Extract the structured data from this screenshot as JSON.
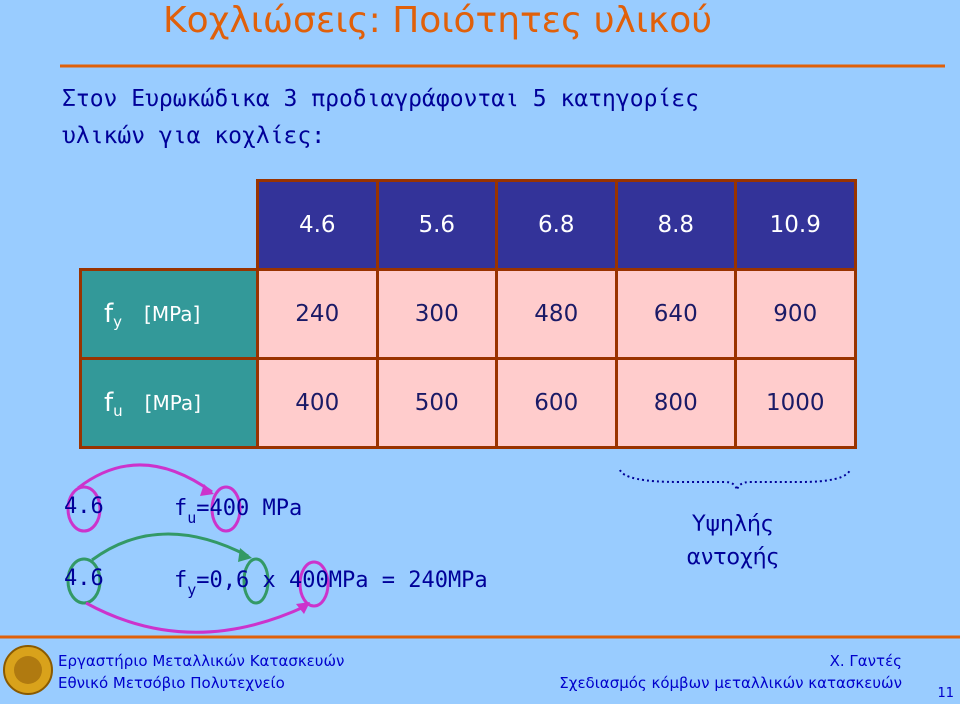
{
  "title": "Κοχλιώσεις: Ποιότητες υλικού",
  "intro": [
    "Στον Ευρωκώδικα 3 προδιαγράφονται 5 κατηγορίες",
    "υλικών για κοχλίες:"
  ],
  "table": {
    "header": [
      "4.6",
      "5.6",
      "6.8",
      "8.8",
      "10.9"
    ],
    "rows": [
      {
        "symbol": "f",
        "subscript": "y",
        "unit": "[MPa]",
        "values": [
          "240",
          "300",
          "480",
          "640",
          "900"
        ]
      },
      {
        "symbol": "f",
        "subscript": "u",
        "unit": "[MPa]",
        "values": [
          "400",
          "500",
          "600",
          "800",
          "1000"
        ]
      }
    ]
  },
  "example": [
    {
      "grade": "4.6",
      "symbol": "f",
      "subscript": "u",
      "expression": "=400 MPa"
    },
    {
      "grade": "4.6",
      "symbol": "f",
      "subscript": "y",
      "expression": "=0,6 x 400MPa = 240MPa"
    }
  ],
  "annotation": [
    "Υψηλής",
    "αντοχής"
  ],
  "footer": {
    "lab": "Εργαστήριο Μεταλλικών Κατασκευών",
    "university": "Εθνικό Μετσόβιο Πολυτεχνείο",
    "author": "Χ. Γαντές",
    "course": "Σχεδιασμός κόμβων μεταλλικών κατασκευών",
    "page": "11"
  }
}
